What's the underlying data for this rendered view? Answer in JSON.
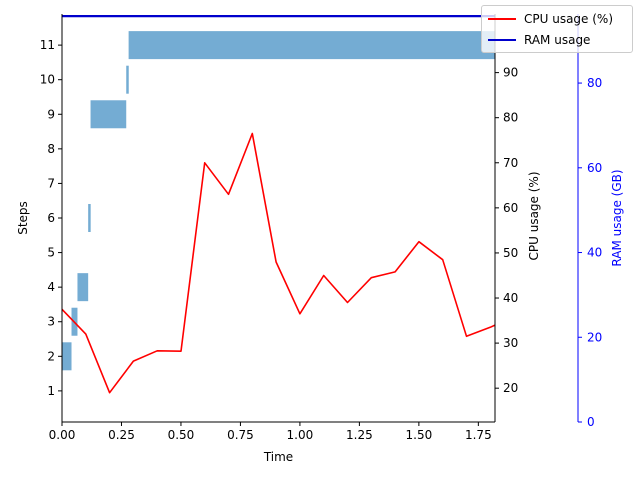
{
  "chart_data": {
    "type": "bar+line",
    "xlabel": "Time",
    "x_ticks": [
      "0.00",
      "0.25",
      "0.50",
      "0.75",
      "1.00",
      "1.25",
      "1.50",
      "1.75"
    ],
    "xlim": [
      0,
      1.82
    ],
    "steps_axis": {
      "ylabel": "Steps",
      "ticks": [
        "1",
        "2",
        "3",
        "4",
        "5",
        "6",
        "7",
        "8",
        "9",
        "10",
        "11"
      ],
      "ylim": [
        0.1,
        11.9
      ],
      "color": "#000000"
    },
    "step_bars": {
      "color": "#74acd3",
      "bars": [
        {
          "step": 2,
          "start": 0.0,
          "end": 0.04
        },
        {
          "step": 3,
          "start": 0.04,
          "end": 0.065
        },
        {
          "step": 4,
          "start": 0.065,
          "end": 0.11
        },
        {
          "step": 6,
          "start": 0.11,
          "end": 0.12
        },
        {
          "step": 9,
          "start": 0.12,
          "end": 0.27
        },
        {
          "step": 10,
          "start": 0.27,
          "end": 0.28
        },
        {
          "step": 11,
          "start": 0.28,
          "end": 1.82
        }
      ]
    },
    "cpu_axis": {
      "ylabel": "CPU usage (%)",
      "ticks": [
        20,
        30,
        40,
        50,
        60,
        70,
        80,
        90
      ],
      "ylim": [
        12.5,
        103
      ],
      "color": "#000000"
    },
    "ram_axis": {
      "ylabel": "RAM usage (GB)",
      "ticks": [
        0,
        20,
        40,
        60,
        80
      ],
      "ylim": [
        0,
        96.3
      ],
      "color": "#0000ff"
    },
    "series": [
      {
        "name": "CPU usage (%)",
        "color": "#ff0000",
        "axis": "cpu",
        "x": [
          0.0,
          0.1,
          0.2,
          0.3,
          0.4,
          0.5,
          0.6,
          0.7,
          0.8,
          0.9,
          1.0,
          1.1,
          1.2,
          1.3,
          1.4,
          1.5,
          1.6,
          1.7,
          1.8,
          1.82
        ],
        "y": [
          37.5,
          32.0,
          19.0,
          26.0,
          28.3,
          28.2,
          70.0,
          63.0,
          76.5,
          48.0,
          36.5,
          45.0,
          39.0,
          44.5,
          45.8,
          52.5,
          48.5,
          31.5,
          33.5,
          34.0
        ]
      },
      {
        "name": "RAM usage",
        "color": "#0000cc",
        "axis": "ram",
        "x": [
          0.0,
          1.82
        ],
        "y": [
          95.8,
          95.8
        ]
      }
    ],
    "legend": {
      "position": "top-right",
      "items": [
        {
          "label": "CPU usage (%)",
          "color": "#ff0000"
        },
        {
          "label": "RAM usage",
          "color": "#0000cc"
        }
      ]
    }
  }
}
